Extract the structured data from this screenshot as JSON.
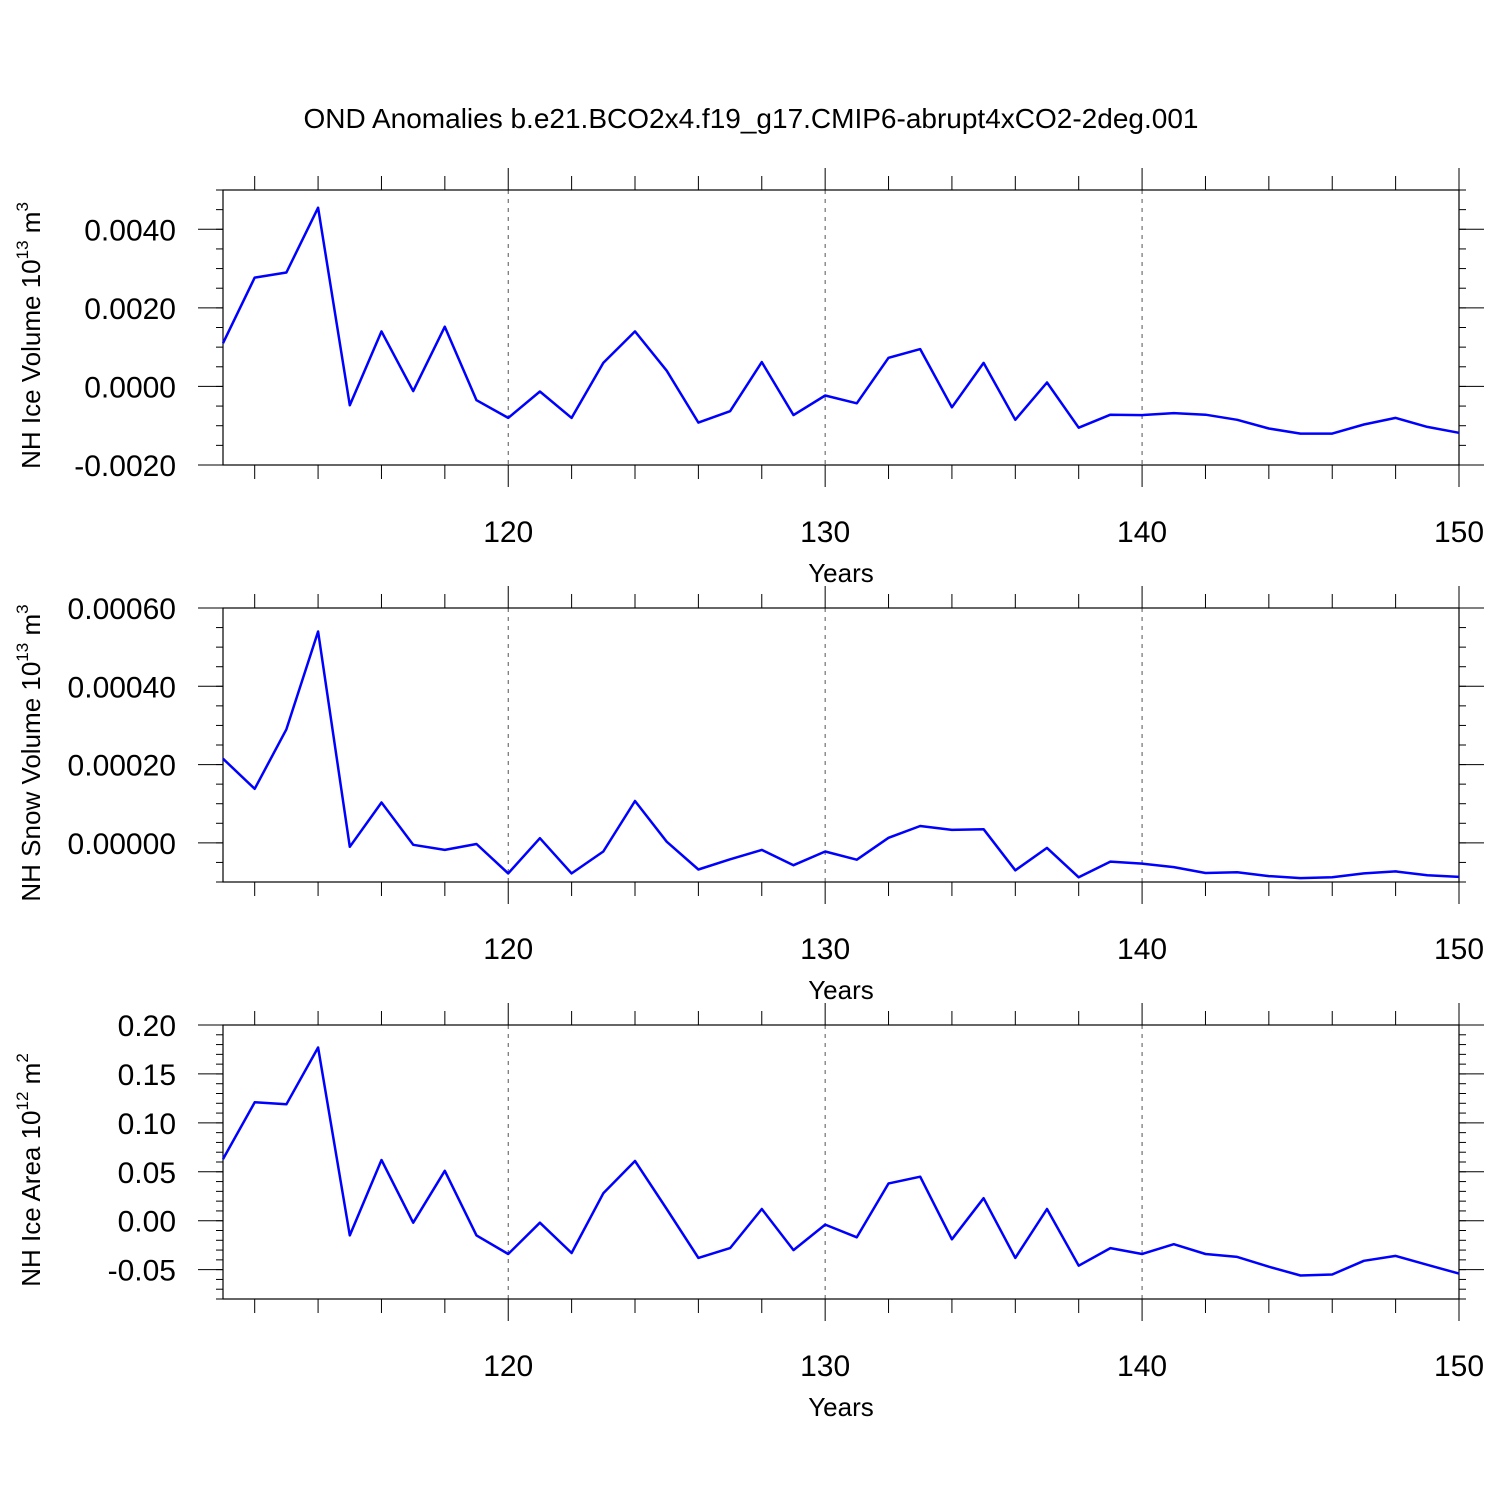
{
  "title": "OND Anomalies b.e21.BCO2x4.f19_g17.CMIP6-abrupt4xCO2-2deg.001",
  "line_color": "#0000ff",
  "chart_data": [
    {
      "type": "line",
      "ylabel": {
        "main": "NH Ice Volume 10",
        "exponent": "13",
        "unit": " m",
        "unit_exponent": "3"
      },
      "xlabel": "Years",
      "xlim": [
        111,
        150
      ],
      "ylim": [
        -0.002,
        0.005
      ],
      "x_ticks": [
        "120",
        "130",
        "140",
        "150"
      ],
      "y_ticks": [
        "-0.0020",
        "0.0000",
        "0.0020",
        "0.0040"
      ],
      "x": [
        111,
        112,
        113,
        114,
        115,
        116,
        117,
        118,
        119,
        120,
        121,
        122,
        123,
        124,
        125,
        126,
        127,
        128,
        129,
        130,
        131,
        132,
        133,
        134,
        135,
        136,
        137,
        138,
        139,
        140,
        141,
        142,
        143,
        144,
        145,
        146,
        147,
        148,
        149,
        150
      ],
      "series": [
        {
          "values": [
            0.0011,
            0.00277,
            0.0029,
            0.00455,
            -0.00048,
            0.0014,
            -0.00012,
            0.00152,
            -0.00035,
            -0.0008,
            -0.00013,
            -0.0008,
            0.0006,
            0.0014,
            0.0004,
            -0.00092,
            -0.00063,
            0.00062,
            -0.00073,
            -0.00023,
            -0.00043,
            0.00073,
            0.00095,
            -0.00053,
            0.0006,
            -0.00085,
            0.0001,
            -0.00105,
            -0.00072,
            -0.00073,
            -0.00068,
            -0.00072,
            -0.00085,
            -0.00107,
            -0.0012,
            -0.0012,
            -0.00097,
            -0.0008,
            -0.00103,
            -0.00118
          ]
        }
      ]
    },
    {
      "type": "line",
      "ylabel": {
        "main": "NH Snow Volume 10",
        "exponent": "13",
        "unit": " m",
        "unit_exponent": "3"
      },
      "xlabel": "Years",
      "xlim": [
        111,
        150
      ],
      "ylim": [
        -0.0001,
        0.0006
      ],
      "x_ticks": [
        "120",
        "130",
        "140",
        "150"
      ],
      "y_ticks": [
        "0.00000",
        "0.00020",
        "0.00040",
        "0.00060"
      ],
      "x": [
        111,
        112,
        113,
        114,
        115,
        116,
        117,
        118,
        119,
        120,
        121,
        122,
        123,
        124,
        125,
        126,
        127,
        128,
        129,
        130,
        131,
        132,
        133,
        134,
        135,
        136,
        137,
        138,
        139,
        140,
        141,
        142,
        143,
        144,
        145,
        146,
        147,
        148,
        149,
        150
      ],
      "series": [
        {
          "values": [
            0.000215,
            0.000138,
            0.00029,
            0.00054,
            -1e-05,
            0.000103,
            -5e-06,
            -1.8e-05,
            -3e-06,
            -7.8e-05,
            1.2e-05,
            -7.8e-05,
            -2.2e-05,
            0.000107,
            3e-06,
            -6.8e-05,
            -4.2e-05,
            -1.8e-05,
            -5.7e-05,
            -2.2e-05,
            -4.3e-05,
            1.3e-05,
            4.3e-05,
            3.3e-05,
            3.5e-05,
            -7e-05,
            -1.3e-05,
            -8.8e-05,
            -4.8e-05,
            -5.3e-05,
            -6.2e-05,
            -7.7e-05,
            -7.5e-05,
            -8.5e-05,
            -9e-05,
            -8.8e-05,
            -7.8e-05,
            -7.3e-05,
            -8.3e-05,
            -8.7e-05
          ]
        }
      ]
    },
    {
      "type": "line",
      "ylabel": {
        "main": "NH Ice Area 10",
        "exponent": "12",
        "unit": " m",
        "unit_exponent": "2"
      },
      "xlabel": "Years",
      "xlim": [
        111,
        150
      ],
      "ylim": [
        -0.08,
        0.2
      ],
      "x_ticks": [
        "120",
        "130",
        "140",
        "150"
      ],
      "y_ticks": [
        "-0.05",
        "0.00",
        "0.05",
        "0.10",
        "0.15",
        "0.20"
      ],
      "x": [
        111,
        112,
        113,
        114,
        115,
        116,
        117,
        118,
        119,
        120,
        121,
        122,
        123,
        124,
        125,
        126,
        127,
        128,
        129,
        130,
        131,
        132,
        133,
        134,
        135,
        136,
        137,
        138,
        139,
        140,
        141,
        142,
        143,
        144,
        145,
        146,
        147,
        148,
        149,
        150
      ],
      "series": [
        {
          "values": [
            0.063,
            0.121,
            0.119,
            0.177,
            -0.015,
            0.062,
            -0.002,
            0.051,
            -0.015,
            -0.034,
            -0.002,
            -0.033,
            0.028,
            0.061,
            0.012,
            -0.038,
            -0.028,
            0.012,
            -0.03,
            -0.004,
            -0.017,
            0.038,
            0.045,
            -0.019,
            0.023,
            -0.038,
            0.012,
            -0.046,
            -0.028,
            -0.034,
            -0.024,
            -0.034,
            -0.037,
            -0.047,
            -0.056,
            -0.055,
            -0.041,
            -0.036,
            -0.045,
            -0.054
          ]
        }
      ]
    }
  ]
}
